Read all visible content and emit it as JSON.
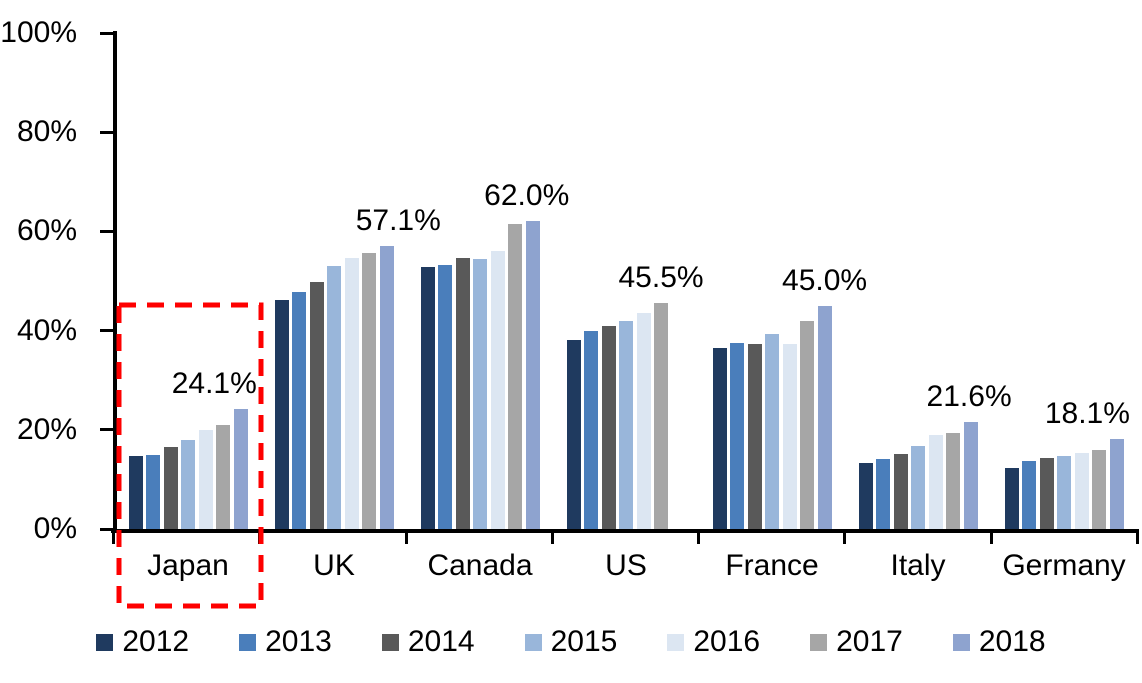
{
  "chart_data": {
    "type": "bar",
    "title": "",
    "xlabel": "",
    "ylabel": "",
    "categories": [
      "Japan",
      "UK",
      "Canada",
      "US",
      "France",
      "Italy",
      "Germany"
    ],
    "series": [
      {
        "name": "2012",
        "color": "#1F3A5F",
        "values": [
          14.8,
          46.2,
          52.8,
          38.2,
          36.5,
          13.4,
          12.3
        ]
      },
      {
        "name": "2013",
        "color": "#4A7EBB",
        "values": [
          15.0,
          47.7,
          53.2,
          39.9,
          37.5,
          14.1,
          13.8
        ]
      },
      {
        "name": "2014",
        "color": "#595959",
        "values": [
          16.5,
          49.8,
          54.7,
          40.9,
          37.4,
          15.2,
          14.4
        ]
      },
      {
        "name": "2015",
        "color": "#99B6DA",
        "values": [
          17.9,
          53.1,
          54.5,
          42.0,
          39.3,
          16.8,
          14.7
        ]
      },
      {
        "name": "2016",
        "color": "#DCE6F2",
        "values": [
          19.9,
          54.6,
          56.0,
          43.5,
          37.3,
          19.0,
          15.4
        ]
      },
      {
        "name": "2017",
        "color": "#A6A6A6",
        "values": [
          21.0,
          55.7,
          61.5,
          45.5,
          42.0,
          19.3,
          15.9
        ]
      },
      {
        "name": "2018",
        "color": "#8EA3CF",
        "values": [
          24.1,
          57.1,
          62.0,
          null,
          45.0,
          21.6,
          18.1
        ]
      }
    ],
    "data_labels": [
      "24.1%",
      "57.1%",
      "62.0%",
      "45.5%",
      "45.0%",
      "21.6%",
      "18.1%"
    ],
    "y_axis": {
      "ticks": [
        "100%",
        "80%",
        "60%",
        "40%",
        "20%",
        "0%"
      ],
      "min": 0,
      "max": 100,
      "grid": false
    },
    "legend": {
      "position": "bottom",
      "entries": [
        "2012",
        "2013",
        "2014",
        "2015",
        "2016",
        "2017",
        "2018"
      ]
    },
    "highlight": {
      "category": "Japan",
      "shape": "dashed-rectangle",
      "color": "#FE0000"
    }
  }
}
